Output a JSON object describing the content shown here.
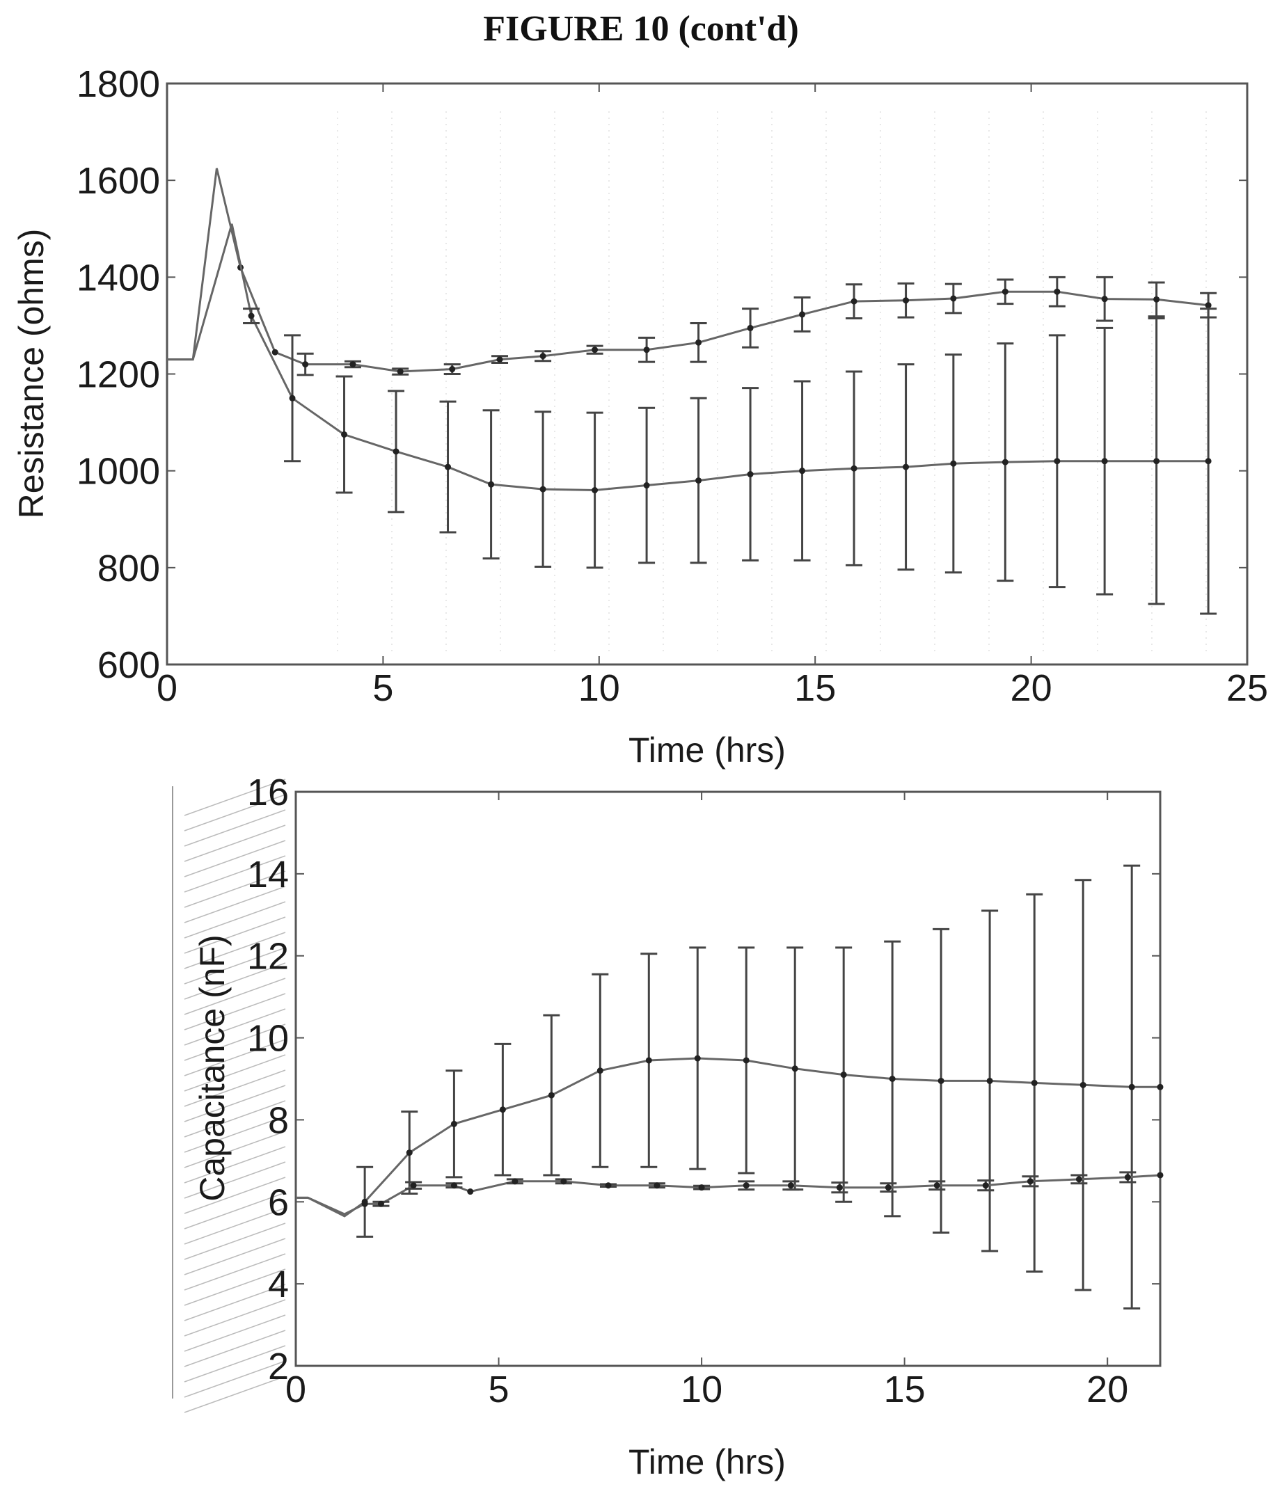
{
  "figure_title": "FIGURE 10 (cont'd)",
  "chart_data": [
    {
      "type": "line",
      "title": "",
      "xlabel": "Time (hrs)",
      "ylabel": "Resistance (ohms)",
      "xlim": [
        0,
        25
      ],
      "ylim": [
        600,
        1800
      ],
      "xticks": [
        0,
        5,
        10,
        15,
        20,
        25
      ],
      "yticks": [
        600,
        800,
        1000,
        1200,
        1400,
        1600,
        1800
      ],
      "grid": false,
      "series": [
        {
          "x": [
            0,
            0.6,
            1.15,
            1.7,
            2.5,
            3.2,
            4.3,
            5.4,
            6.6,
            7.7,
            8.7,
            9.9,
            11.1,
            12.3,
            13.5,
            14.7,
            15.9,
            17.1,
            18.2,
            19.4,
            20.6,
            21.7,
            22.9,
            24.1
          ],
          "y": [
            1230,
            1230,
            1625,
            1420,
            1245,
            1220,
            1220,
            1205,
            1210,
            1230,
            1237,
            1250,
            1250,
            1265,
            1295,
            1323,
            1350,
            1352,
            1356,
            1370,
            1370,
            1355,
            1354,
            1342
          ],
          "errors": [
            0,
            0,
            0,
            0,
            0,
            22,
            6,
            6,
            10,
            7,
            10,
            8,
            25,
            40,
            40,
            35,
            35,
            35,
            30,
            25,
            30,
            45,
            35,
            25
          ]
        },
        {
          "x": [
            0,
            0.6,
            1.5,
            1.95,
            2.9,
            4.1,
            5.3,
            6.5,
            7.5,
            8.7,
            9.9,
            11.1,
            12.3,
            13.5,
            14.7,
            15.9,
            17.1,
            18.2,
            19.4,
            20.6,
            21.7,
            22.9,
            24.1
          ],
          "y": [
            1230,
            1230,
            1510,
            1320,
            1150,
            1075,
            1040,
            1008,
            972,
            962,
            960,
            970,
            980,
            993,
            1000,
            1005,
            1008,
            1015,
            1018,
            1020,
            1020,
            1020,
            1020
          ],
          "errors": [
            0,
            0,
            0,
            15,
            130,
            120,
            125,
            135,
            153,
            160,
            160,
            160,
            170,
            178,
            185,
            200,
            212,
            225,
            245,
            260,
            275,
            295,
            315
          ]
        }
      ]
    },
    {
      "type": "line",
      "title": "",
      "xlabel": "Time (hrs)",
      "ylabel": "Capacitance (nF)",
      "xlim": [
        0,
        21.3
      ],
      "ylim": [
        2,
        16
      ],
      "xticks": [
        0,
        5,
        10,
        15,
        20
      ],
      "yticks": [
        2,
        4,
        6,
        8,
        10,
        12,
        14,
        16
      ],
      "grid": false,
      "series": [
        {
          "x": [
            0,
            0.3,
            1.2,
            1.7,
            2.8,
            3.9,
            5.1,
            6.3,
            7.5,
            8.7,
            9.9,
            11.1,
            12.3,
            13.5,
            14.7,
            15.9,
            17.1,
            18.2,
            19.4,
            20.6,
            21.3
          ],
          "y": [
            6.1,
            6.1,
            5.65,
            6.0,
            7.2,
            7.9,
            8.25,
            8.6,
            9.2,
            9.45,
            9.5,
            9.45,
            9.25,
            9.1,
            9.0,
            8.95,
            8.95,
            8.9,
            8.85,
            8.8,
            8.8
          ],
          "errors": [
            0,
            0,
            0,
            0.85,
            1.0,
            1.3,
            1.6,
            1.95,
            2.35,
            2.6,
            2.7,
            2.75,
            2.95,
            3.1,
            3.35,
            3.7,
            4.15,
            4.6,
            5.0,
            5.4,
            0
          ]
        },
        {
          "x": [
            0,
            0.3,
            1.2,
            1.7,
            2.1,
            2.9,
            3.9,
            4.3,
            5.4,
            6.6,
            7.7,
            8.9,
            10.0,
            11.1,
            12.2,
            13.4,
            14.6,
            15.8,
            17.0,
            18.1,
            19.3,
            20.5,
            21.3
          ],
          "y": [
            6.1,
            6.1,
            5.7,
            5.95,
            5.95,
            6.4,
            6.4,
            6.25,
            6.5,
            6.5,
            6.4,
            6.4,
            6.35,
            6.4,
            6.4,
            6.35,
            6.35,
            6.4,
            6.4,
            6.5,
            6.55,
            6.6,
            6.65
          ],
          "errors": [
            0,
            0,
            0,
            0,
            0.05,
            0.08,
            0.05,
            0,
            0.05,
            0.05,
            0.03,
            0.05,
            0.04,
            0.1,
            0.1,
            0.12,
            0.1,
            0.1,
            0.12,
            0.12,
            0.1,
            0.12,
            0
          ]
        }
      ]
    }
  ]
}
